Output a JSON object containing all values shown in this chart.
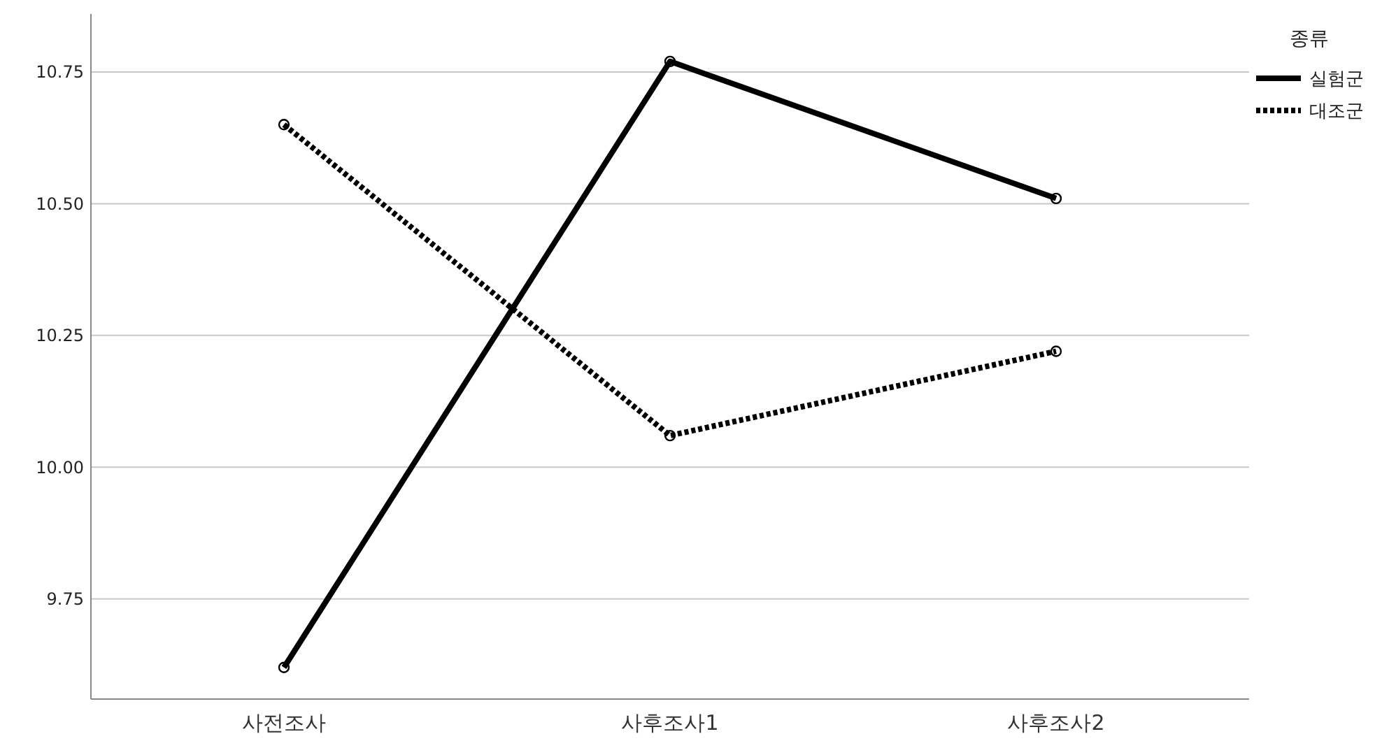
{
  "chart_data": {
    "type": "line",
    "categories": [
      "사전조사",
      "사후조사1",
      "사후조사2"
    ],
    "series": [
      {
        "name": "실험군",
        "color": "#000000",
        "values": [
          9.62,
          10.77,
          10.51
        ],
        "line_style": "solid"
      },
      {
        "name": "대조군",
        "color": "#000000",
        "values": [
          10.65,
          10.06,
          10.22
        ],
        "line_style": "dotted"
      }
    ],
    "legend_title": "종류",
    "legend": "top right",
    "marker": "circle",
    "grid": "y",
    "ylim": [
      9.56,
      10.86
    ],
    "yticks": [
      {
        "value": 9.75,
        "label": "9.75"
      },
      {
        "value": 10,
        "label": "10.00"
      },
      {
        "value": 10.25,
        "label": "10.25"
      },
      {
        "value": 10.5,
        "label": "10.50"
      },
      {
        "value": 10.75,
        "label": "10.75"
      }
    ]
  }
}
